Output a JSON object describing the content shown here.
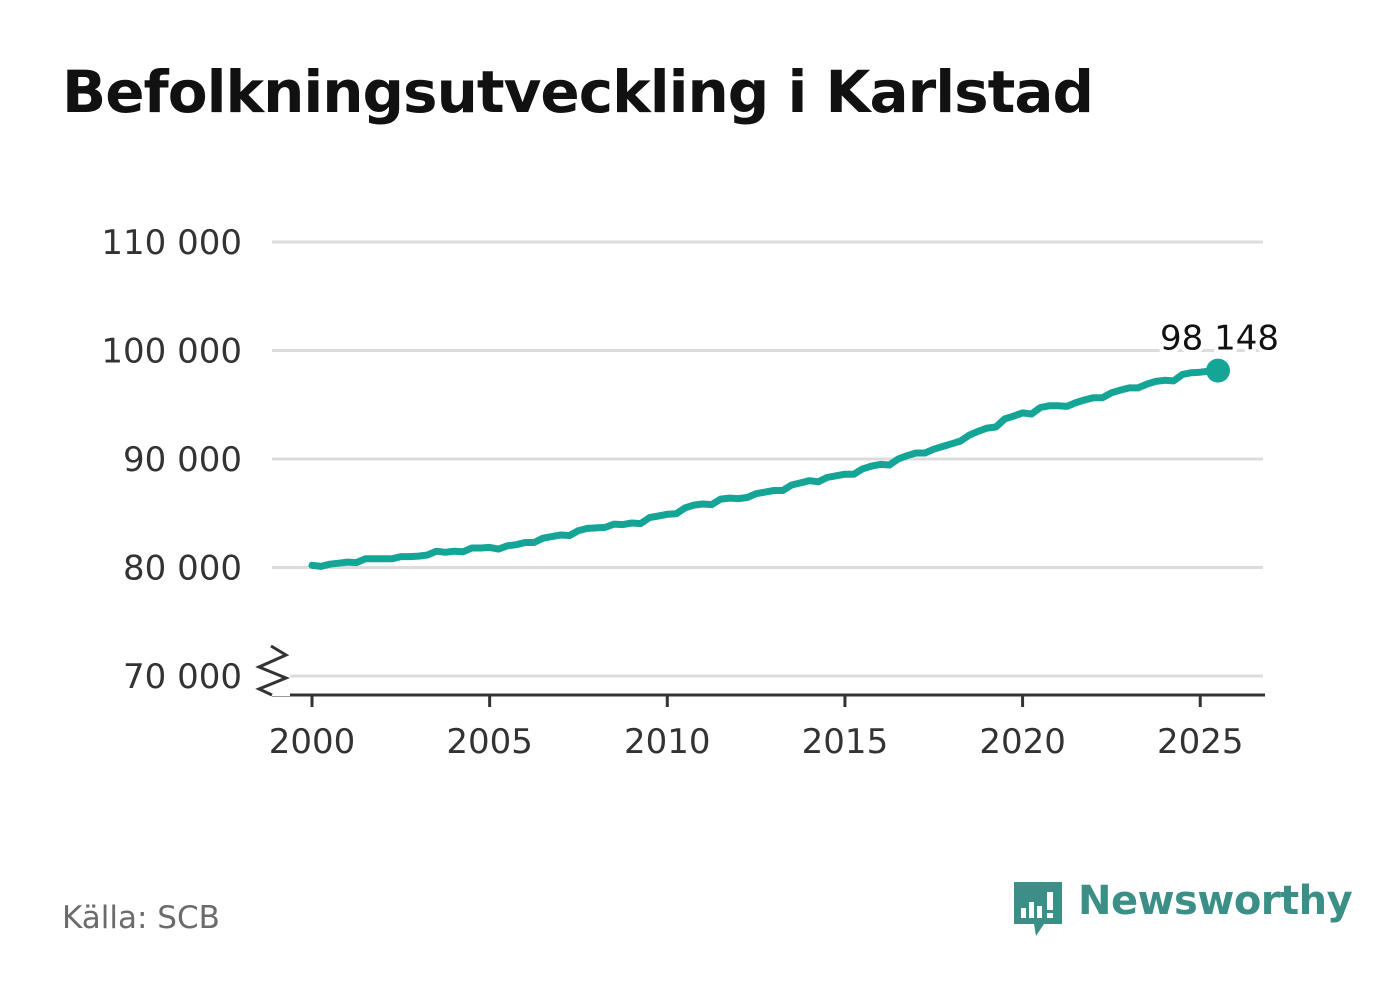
{
  "title": "Befolkningsutveckling i Karlstad",
  "source": "Källa: SCB",
  "brand": {
    "name": "Newsworthy",
    "logo_icon": "bar-chart-speech-bubble-icon"
  },
  "colors": {
    "line": "#14a596",
    "grid": "#dcdcdc",
    "axis": "#333333",
    "brand": "#3b8f86"
  },
  "chart_data": {
    "type": "line",
    "title": "Befolkningsutveckling i Karlstad",
    "xlabel": "",
    "ylabel": "",
    "xlim": [
      2000.0,
      2025.5
    ],
    "ylim": [
      70000,
      110000
    ],
    "y_axis_break": true,
    "grid": "horizontal",
    "x_ticks": [
      2000,
      2005,
      2010,
      2015,
      2020,
      2025
    ],
    "x_tick_labels": [
      "2000",
      "2005",
      "2010",
      "2015",
      "2020",
      "2025"
    ],
    "y_ticks": [
      70000,
      80000,
      90000,
      100000,
      110000
    ],
    "y_tick_labels": [
      "70 000",
      "80 000",
      "90 000",
      "100 000",
      "110 000"
    ],
    "end_label": "98 148",
    "series": [
      {
        "x": [
          2000.0,
          2000.25,
          2000.5,
          2000.75,
          2001.0,
          2001.25,
          2001.5,
          2001.75,
          2002.0,
          2002.25,
          2002.5,
          2002.75,
          2003.0,
          2003.25,
          2003.5,
          2003.75,
          2004.0,
          2004.25,
          2004.5,
          2004.75,
          2005.0,
          2005.25,
          2005.5,
          2005.75,
          2006.0,
          2006.25,
          2006.5,
          2006.75,
          2007.0,
          2007.25,
          2007.5,
          2007.75,
          2008.0,
          2008.25,
          2008.5,
          2008.75,
          2009.0,
          2009.25,
          2009.5,
          2009.75,
          2010.0,
          2010.25,
          2010.5,
          2010.75,
          2011.0,
          2011.25,
          2011.5,
          2011.75,
          2012.0,
          2012.25,
          2012.5,
          2012.75,
          2013.0,
          2013.25,
          2013.5,
          2013.75,
          2014.0,
          2014.25,
          2014.5,
          2014.75,
          2015.0,
          2015.25,
          2015.5,
          2015.75,
          2016.0,
          2016.25,
          2016.5,
          2016.75,
          2017.0,
          2017.25,
          2017.5,
          2017.75,
          2018.0,
          2018.25,
          2018.5,
          2018.75,
          2019.0,
          2019.25,
          2019.5,
          2019.75,
          2020.0,
          2020.25,
          2020.5,
          2020.75,
          2021.0,
          2021.25,
          2021.5,
          2021.75,
          2022.0,
          2022.25,
          2022.5,
          2022.75,
          2023.0,
          2023.25,
          2023.5,
          2023.75,
          2024.0,
          2024.25,
          2024.5,
          2024.75,
          2025.0,
          2025.25,
          2025.5
        ],
        "values": [
          80200,
          80100,
          80300,
          80400,
          80500,
          80450,
          80800,
          80800,
          80800,
          80800,
          81000,
          81000,
          81050,
          81150,
          81500,
          81400,
          81500,
          81450,
          81800,
          81800,
          81850,
          81700,
          82000,
          82100,
          82300,
          82300,
          82700,
          82850,
          83000,
          82950,
          83400,
          83600,
          83650,
          83700,
          84000,
          83950,
          84100,
          84050,
          84600,
          84750,
          84900,
          84950,
          85500,
          85750,
          85850,
          85800,
          86300,
          86400,
          86350,
          86450,
          86800,
          86950,
          87100,
          87100,
          87600,
          87800,
          88000,
          87900,
          88300,
          88450,
          88600,
          88600,
          89100,
          89350,
          89500,
          89450,
          90000,
          90300,
          90550,
          90550,
          90900,
          91150,
          91400,
          91650,
          92200,
          92550,
          92850,
          92950,
          93700,
          93950,
          94250,
          94150,
          94750,
          94900,
          94900,
          94850,
          95200,
          95450,
          95650,
          95650,
          96100,
          96350,
          96550,
          96550,
          96900,
          97150,
          97250,
          97200,
          97800,
          97950,
          98000,
          98100,
          98148
        ]
      }
    ]
  }
}
